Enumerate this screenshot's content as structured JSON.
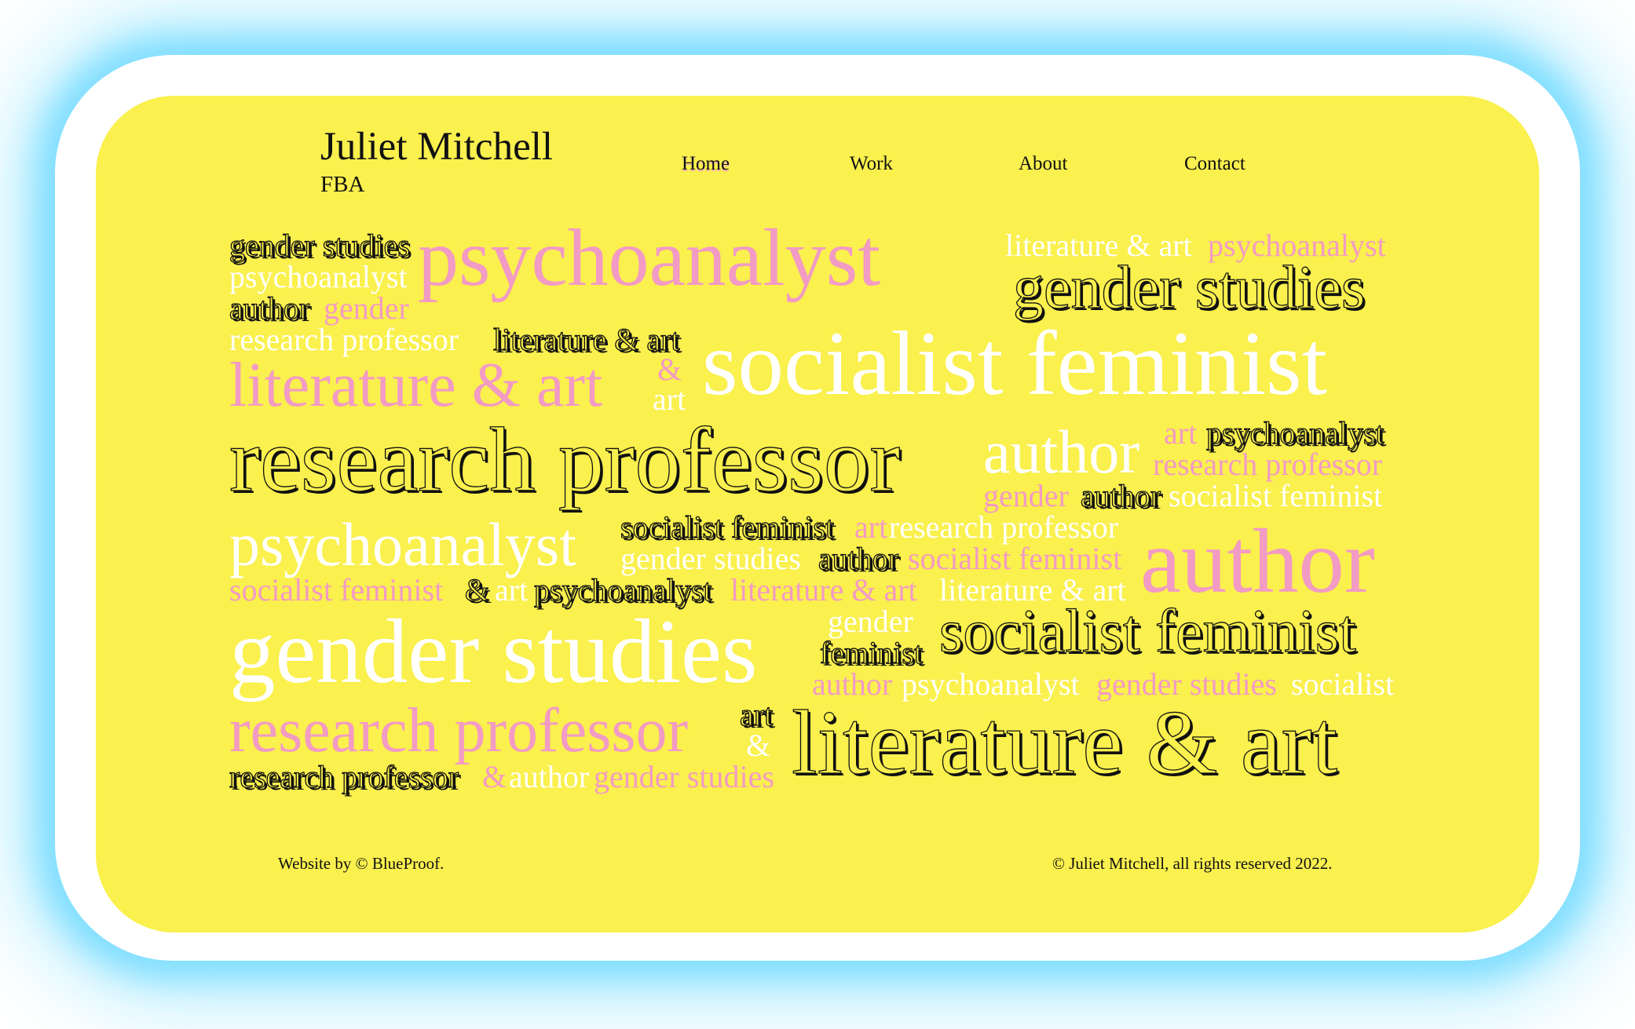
{
  "brand": {
    "name": "Juliet Mitchell",
    "suffix": "FBA"
  },
  "nav": [
    {
      "label": "Home",
      "active": true
    },
    {
      "label": "Work",
      "active": false
    },
    {
      "label": "About",
      "active": false
    },
    {
      "label": "Contact",
      "active": false
    }
  ],
  "word_cloud": [
    {
      "text": "gender studies",
      "color": "dark"
    },
    {
      "text": "psychoanalyst",
      "color": "pink"
    },
    {
      "text": "literature & art",
      "color": "white"
    },
    {
      "text": "psychoanalyst",
      "color": "pink"
    },
    {
      "text": "psychoanalyst",
      "color": "white"
    },
    {
      "text": "gender studies",
      "color": "dark"
    },
    {
      "text": "author",
      "color": "dark"
    },
    {
      "text": "gender",
      "color": "pink"
    },
    {
      "text": "research professor",
      "color": "white"
    },
    {
      "text": "literature & art",
      "color": "dark"
    },
    {
      "text": "literature & art",
      "color": "pink"
    },
    {
      "text": "&",
      "color": "pink"
    },
    {
      "text": "art",
      "color": "white"
    },
    {
      "text": "socialist feminist",
      "color": "white"
    },
    {
      "text": "research professor",
      "color": "dark"
    },
    {
      "text": "author",
      "color": "white"
    },
    {
      "text": "art",
      "color": "pink"
    },
    {
      "text": "psychoanalyst",
      "color": "dark"
    },
    {
      "text": "research professor",
      "color": "pink"
    },
    {
      "text": "gender",
      "color": "pink"
    },
    {
      "text": "author",
      "color": "dark"
    },
    {
      "text": "socialist feminist",
      "color": "white"
    },
    {
      "text": "psychoanalyst",
      "color": "white"
    },
    {
      "text": "socialist feminist",
      "color": "dark"
    },
    {
      "text": "art",
      "color": "pink"
    },
    {
      "text": "research professor",
      "color": "white"
    },
    {
      "text": "gender studies",
      "color": "white"
    },
    {
      "text": "author",
      "color": "dark"
    },
    {
      "text": "socialist feminist",
      "color": "pink"
    },
    {
      "text": "author",
      "color": "pink"
    },
    {
      "text": "socialist feminist",
      "color": "pink"
    },
    {
      "text": "&",
      "color": "dark"
    },
    {
      "text": "art",
      "color": "white"
    },
    {
      "text": "psychoanalyst",
      "color": "dark"
    },
    {
      "text": "literature & art",
      "color": "pink"
    },
    {
      "text": "literature & art",
      "color": "white"
    },
    {
      "text": "gender studies",
      "color": "white"
    },
    {
      "text": "gender",
      "color": "white"
    },
    {
      "text": "feminist",
      "color": "dark"
    },
    {
      "text": "socialist feminist",
      "color": "dark"
    },
    {
      "text": "author",
      "color": "pink"
    },
    {
      "text": "psychoanalyst",
      "color": "white"
    },
    {
      "text": "gender studies",
      "color": "pink"
    },
    {
      "text": "socialist",
      "color": "white"
    },
    {
      "text": "research professor",
      "color": "pink"
    },
    {
      "text": "art",
      "color": "dark"
    },
    {
      "text": "&",
      "color": "white"
    },
    {
      "text": "literature & art",
      "color": "dark"
    },
    {
      "text": "research professor",
      "color": "dark"
    },
    {
      "text": "&",
      "color": "pink"
    },
    {
      "text": "author",
      "color": "white"
    },
    {
      "text": "gender studies",
      "color": "pink"
    }
  ],
  "footer": {
    "credit": "Website by © BlueProof.",
    "copyright": "© Juliet Mitchell, all rights reserved 2022."
  },
  "colors": {
    "background": "#FAF04E",
    "pink": "#F29BC4",
    "white": "#FFFFFF",
    "text": "#111111",
    "glow": "#7FDDFF"
  }
}
